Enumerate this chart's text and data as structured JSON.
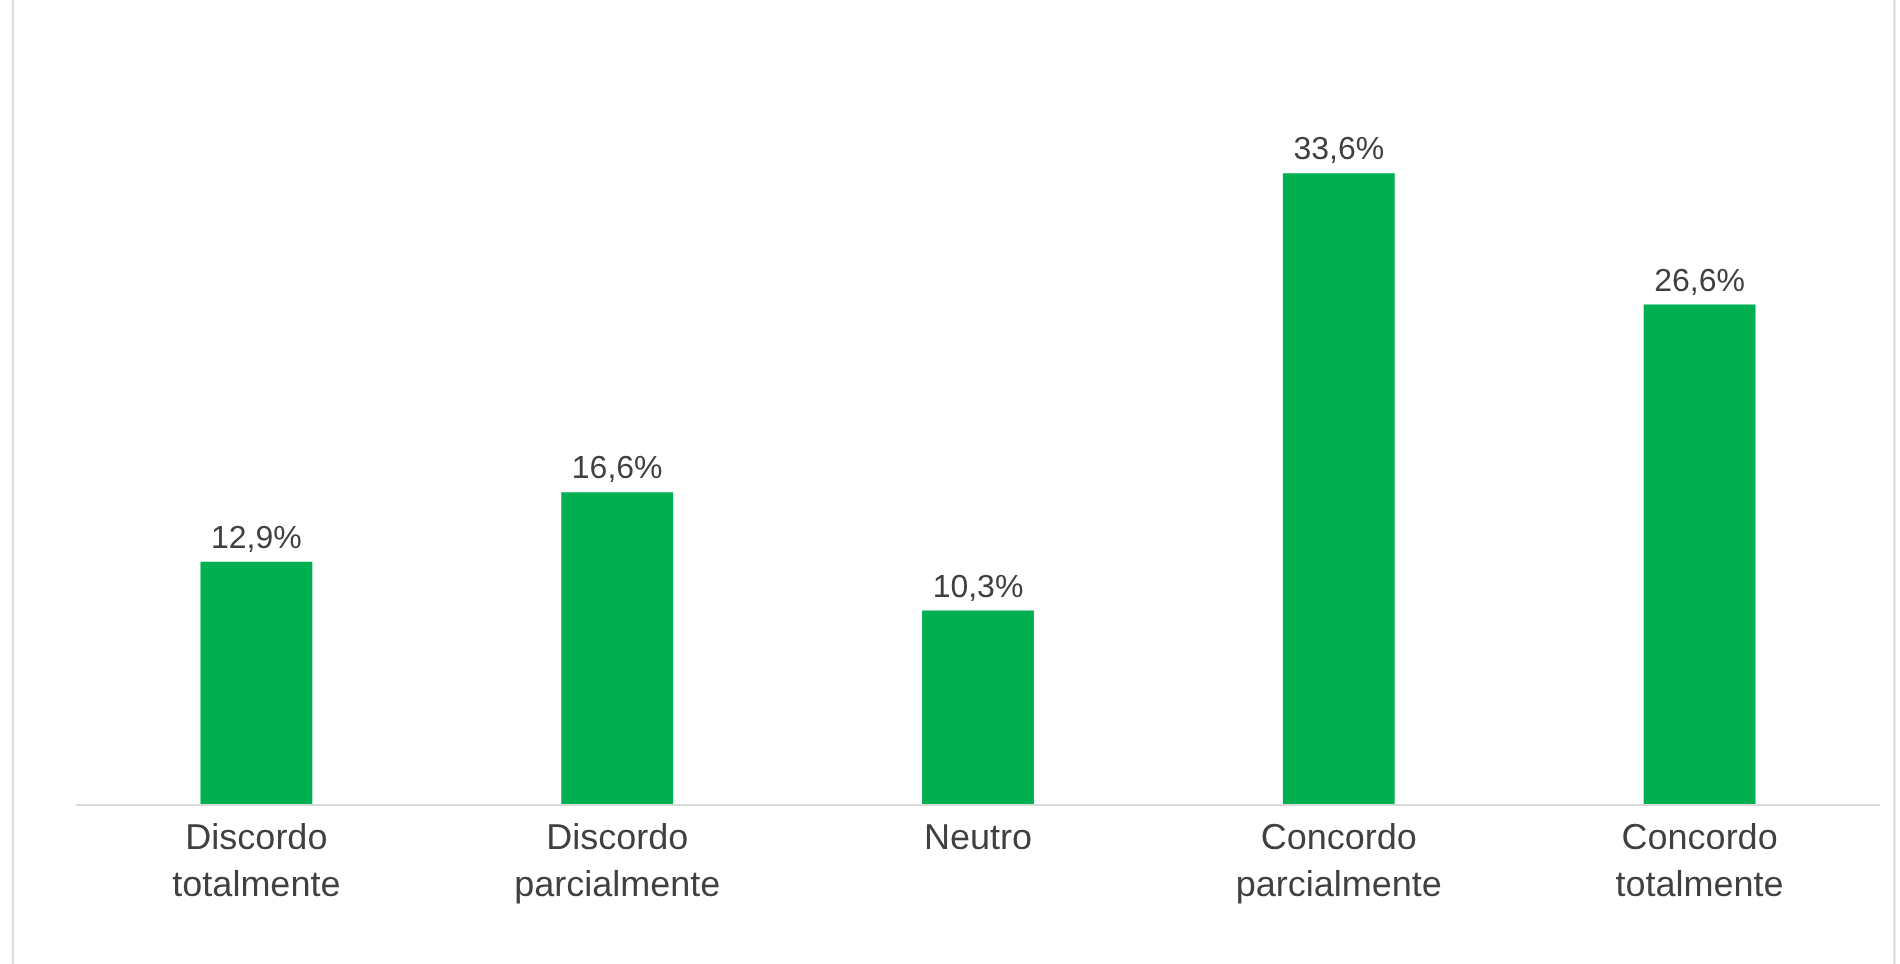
{
  "chart_data": {
    "type": "bar",
    "categories": [
      "Discordo totalmente",
      "Discordo parcialmente",
      "Neutro",
      "Concordo parcialmente",
      "Concordo totalmente"
    ],
    "values": [
      12.9,
      16.6,
      10.3,
      33.6,
      26.6
    ],
    "value_labels": [
      "12,9%",
      "16,6%",
      "10,3%",
      "33,6%",
      "26,6%"
    ],
    "color": "#00b050"
  }
}
